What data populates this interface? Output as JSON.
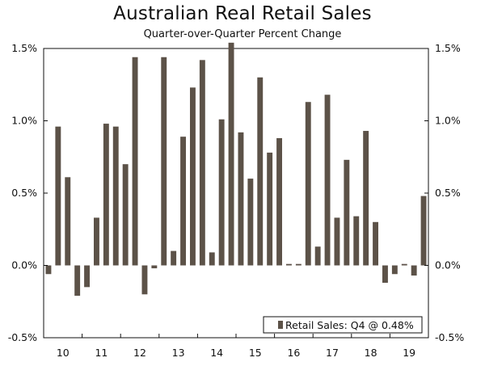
{
  "chart_data": {
    "type": "bar",
    "title": "Australian Real Retail Sales",
    "subtitle": "Quarter-over-Quarter Percent Change",
    "xlabel": "",
    "ylabel": "",
    "ylim": [
      -0.5,
      1.5
    ],
    "yticks": [
      -0.5,
      0.0,
      0.5,
      1.0,
      1.5
    ],
    "ytick_labels": [
      "-0.5%",
      "0.0%",
      "0.5%",
      "1.0%",
      "1.5%"
    ],
    "year_labels": [
      "10",
      "11",
      "12",
      "13",
      "14",
      "15",
      "16",
      "17",
      "18",
      "19"
    ],
    "categories": [
      "2010 Q1",
      "2010 Q2",
      "2010 Q3",
      "2010 Q4",
      "2011 Q1",
      "2011 Q2",
      "2011 Q3",
      "2011 Q4",
      "2012 Q1",
      "2012 Q2",
      "2012 Q3",
      "2012 Q4",
      "2013 Q1",
      "2013 Q2",
      "2013 Q3",
      "2013 Q4",
      "2014 Q1",
      "2014 Q2",
      "2014 Q3",
      "2014 Q4",
      "2015 Q1",
      "2015 Q2",
      "2015 Q3",
      "2015 Q4",
      "2016 Q1",
      "2016 Q2",
      "2016 Q3",
      "2016 Q4",
      "2017 Q1",
      "2017 Q2",
      "2017 Q3",
      "2017 Q4",
      "2018 Q1",
      "2018 Q2",
      "2018 Q3",
      "2018 Q4",
      "2019 Q1",
      "2019 Q2",
      "2019 Q3",
      "2019 Q4"
    ],
    "series": [
      {
        "name": "Retail Sales",
        "color": "#5c5248",
        "values": [
          -0.06,
          0.96,
          0.61,
          -0.21,
          -0.15,
          0.33,
          0.98,
          0.96,
          0.7,
          1.44,
          -0.2,
          -0.02,
          1.44,
          0.1,
          0.89,
          1.23,
          1.42,
          0.09,
          1.01,
          1.54,
          0.92,
          0.6,
          1.3,
          0.78,
          0.88,
          0.01,
          0.01,
          1.13,
          0.13,
          1.18,
          0.33,
          0.73,
          0.34,
          0.93,
          0.3,
          -0.12,
          -0.06,
          0.01,
          -0.07,
          0.48
        ]
      }
    ],
    "legend": {
      "label": "Retail Sales: Q4 @ 0.48%",
      "position": "bottom-right"
    }
  }
}
